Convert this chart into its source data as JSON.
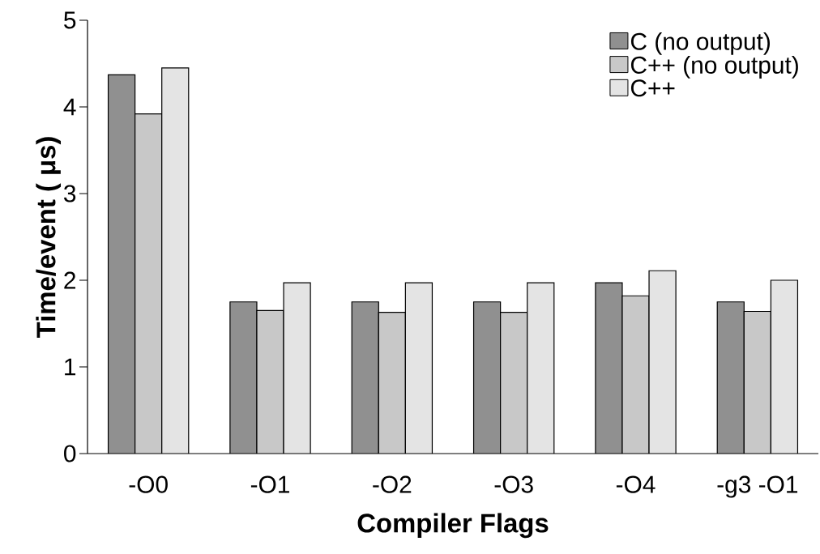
{
  "chart_data": {
    "type": "bar",
    "xlabel": "Compiler Flags",
    "ylabel": "Time/event ( μs)",
    "categories": [
      "-O0",
      "-O1",
      "-O2",
      "-O3",
      "-O4",
      "-g3 -O1"
    ],
    "series": [
      {
        "name": "C (no output)",
        "color": "#909090",
        "values": [
          4.37,
          1.75,
          1.75,
          1.75,
          1.97,
          1.75
        ]
      },
      {
        "name": "C++ (no output)",
        "color": "#c8c8c8",
        "values": [
          3.92,
          1.65,
          1.63,
          1.63,
          1.82,
          1.64
        ]
      },
      {
        "name": "C++",
        "color": "#e4e4e4",
        "values": [
          4.45,
          1.97,
          1.97,
          1.97,
          2.11,
          2.0
        ]
      }
    ],
    "ylim": [
      0,
      5
    ],
    "yticks": [
      0,
      1,
      2,
      3,
      4,
      5
    ],
    "grid": false,
    "legend": "top right"
  }
}
